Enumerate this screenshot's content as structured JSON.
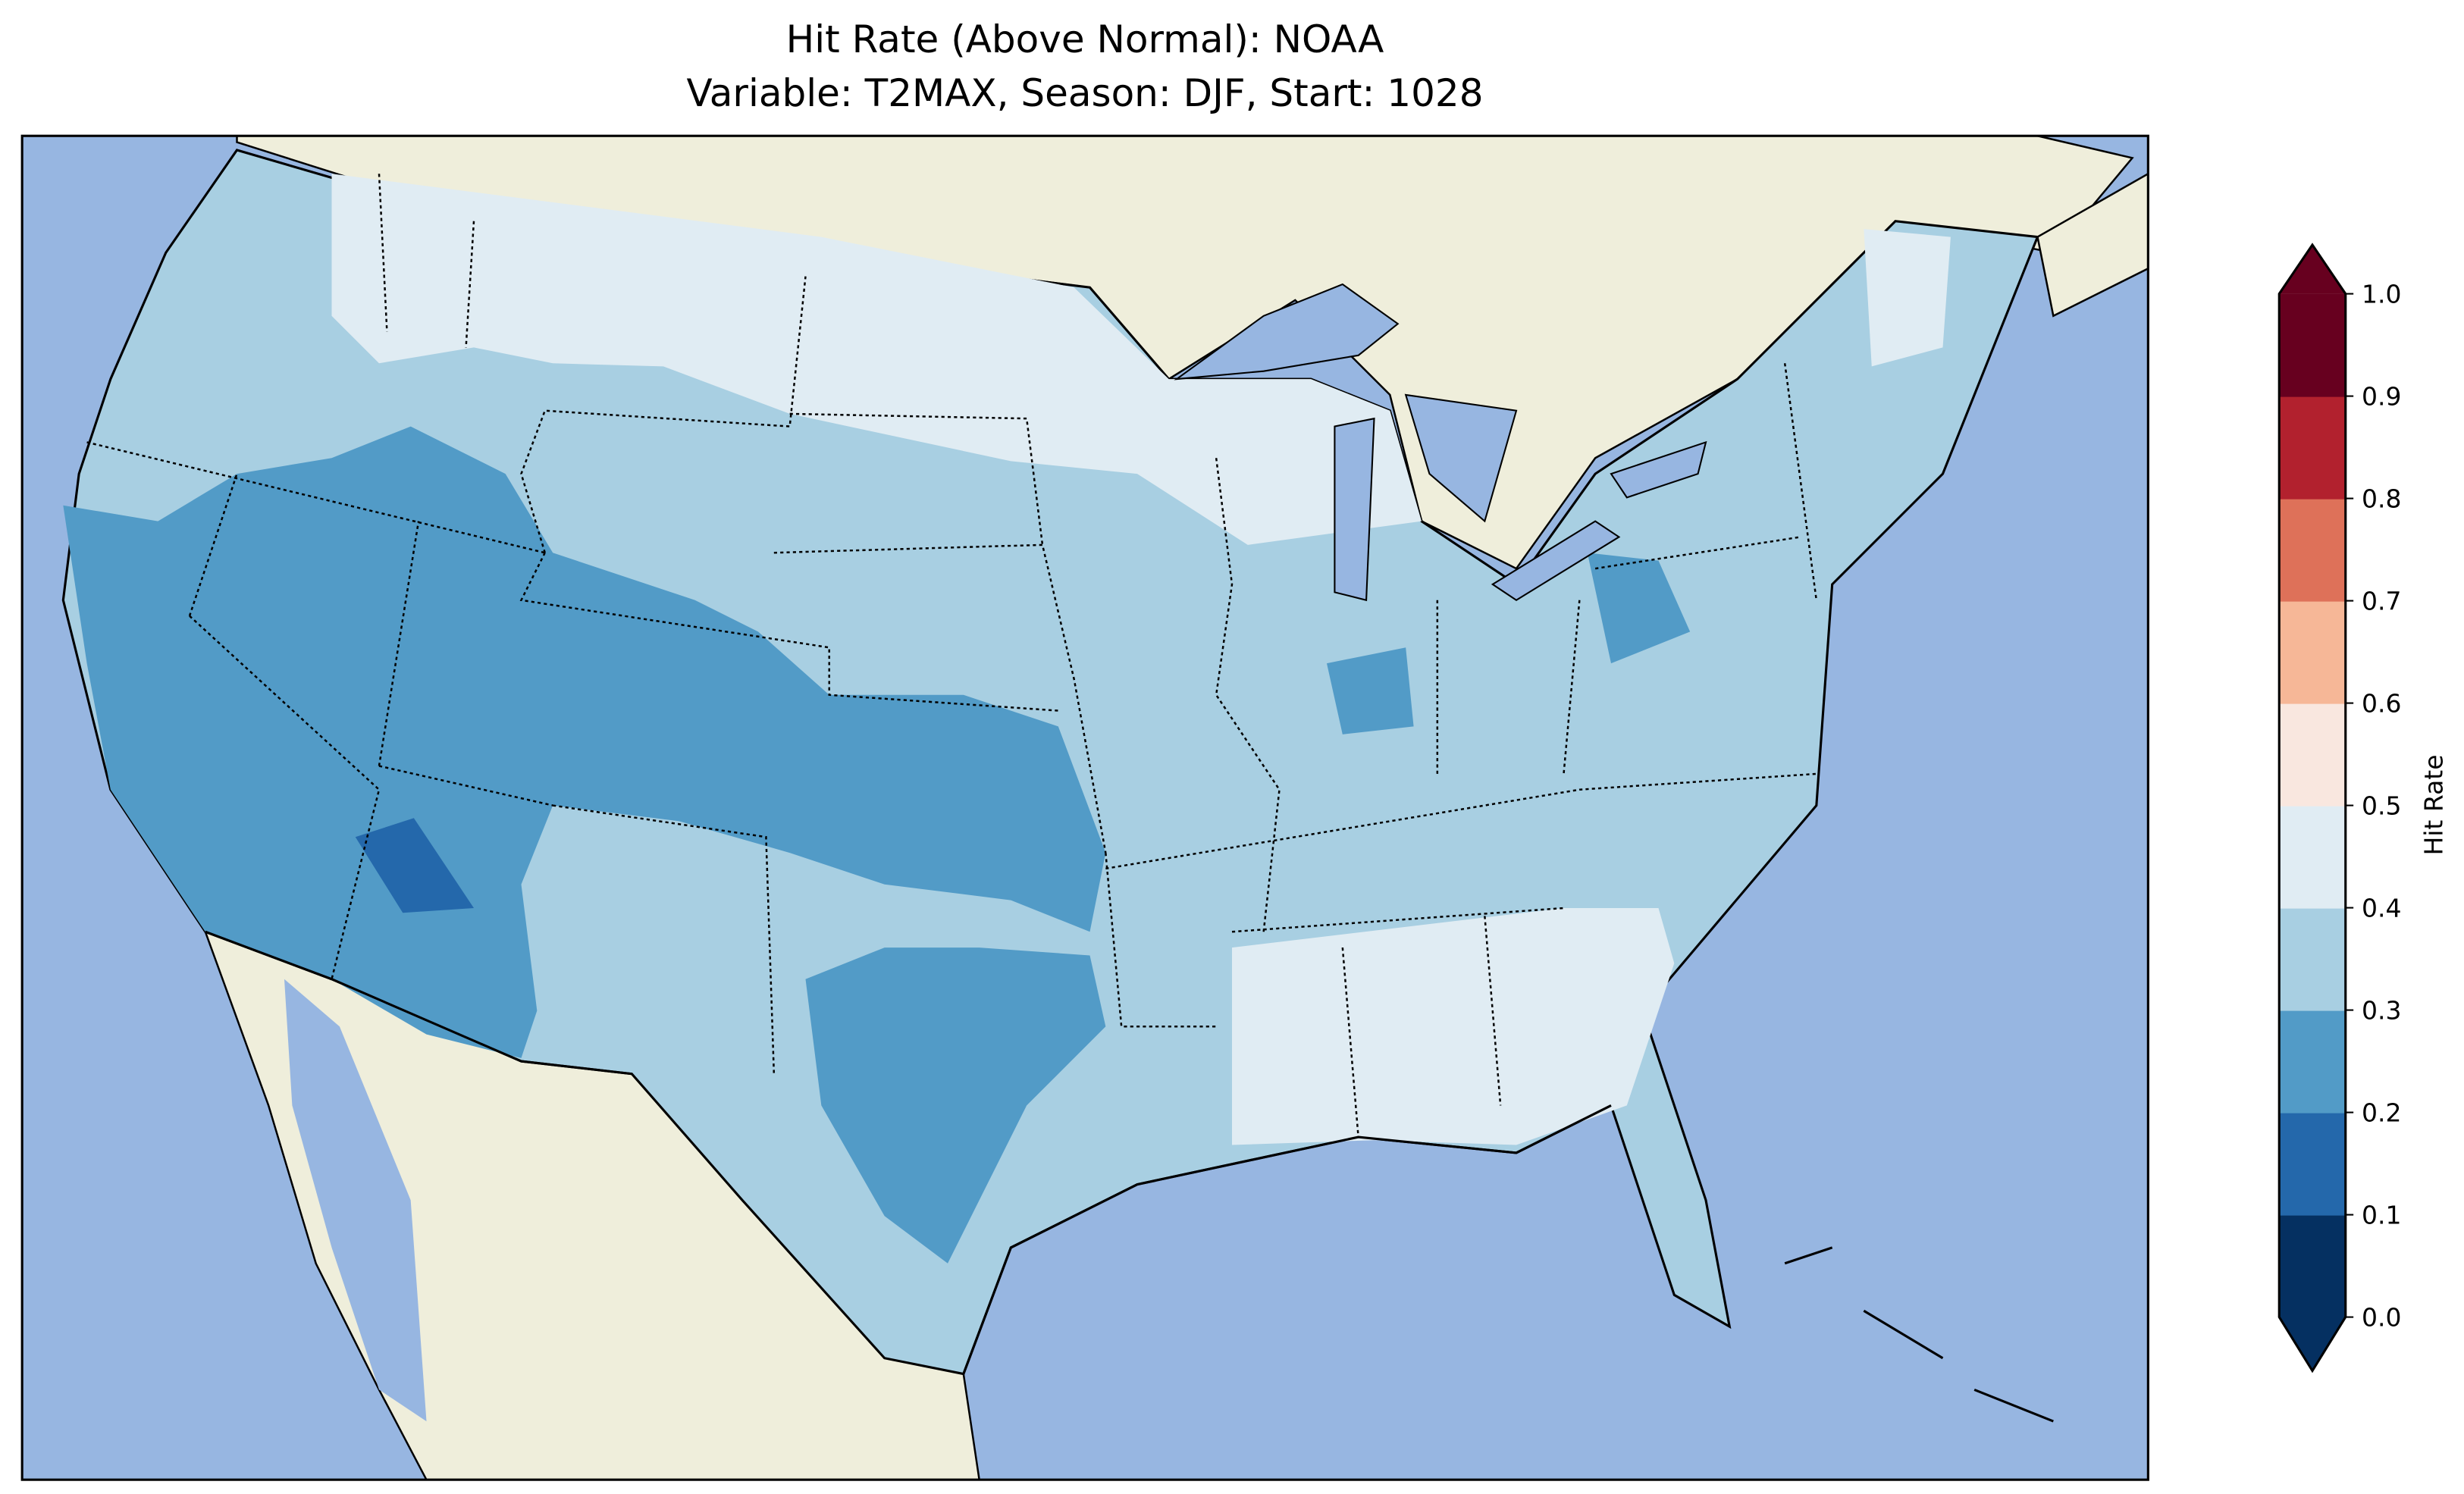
{
  "chart_data": {
    "type": "heatmap",
    "title": "Hit Rate (Above Normal): NOAA",
    "subtitle": "Variable: T2MAX, Season: DJF, Start: 1028",
    "colorbar": {
      "label": "Hit Rate",
      "range": [
        0.0,
        1.0
      ],
      "extend": "both",
      "ticks": [
        "0.0",
        "0.1",
        "0.2",
        "0.3",
        "0.4",
        "0.5",
        "0.6",
        "0.7",
        "0.8",
        "0.9",
        "1.0"
      ],
      "levels": [
        0.0,
        0.1,
        0.2,
        0.3,
        0.4,
        0.5,
        0.6,
        0.7,
        0.8,
        0.9,
        1.0
      ],
      "colors": [
        "#053061",
        "#2468ab",
        "#529bc7",
        "#a8cfe2",
        "#e0ecf3",
        "#f9e7df",
        "#f6b797",
        "#de7159",
        "#b2212e",
        "#67001f"
      ]
    },
    "regions": [
      {
        "area": "Most of CONUS (Midwest, Plains, Northeast, Pacific NW)",
        "bin": "0.3-0.4"
      },
      {
        "area": "Southwest, Great Basin, Colorado, Kansas, Texas",
        "bin": "0.2-0.3"
      },
      {
        "area": "Central Arizona",
        "bin": "0.1-0.2"
      },
      {
        "area": "Northern Rockies/Plains, upper Midwest, Southeast, Maine",
        "bin": "0.4-0.5"
      }
    ],
    "map": {
      "ocean": "#97b6e1",
      "land": "#efeedb"
    }
  }
}
